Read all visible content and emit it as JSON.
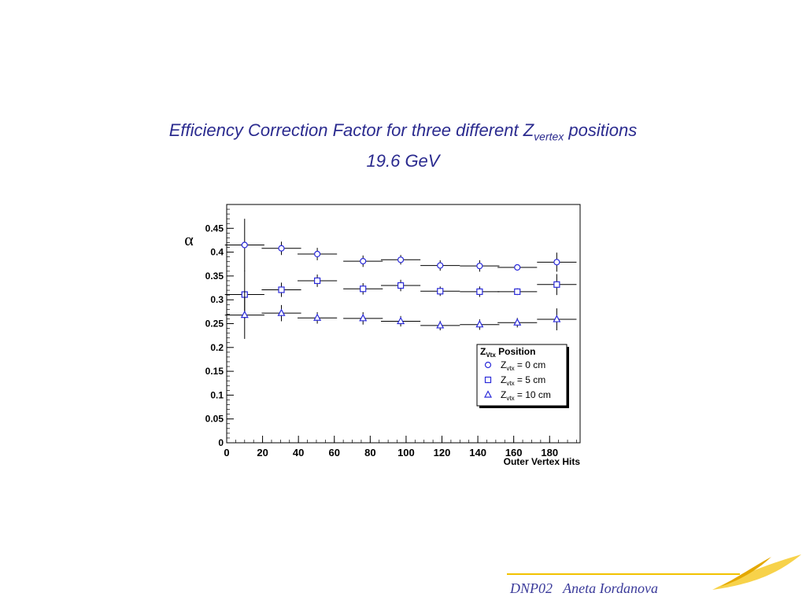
{
  "slide": {
    "title_main": "Efficiency Correction Factor for three different Z",
    "title_sub": "vertex",
    "title_end": " positions",
    "subtitle": "19.6 GeV",
    "footer": "DNP02   Aneta Iordanova"
  },
  "colors": {
    "title": "#2b2b8f",
    "series": "#2b2bd9",
    "accent": "#f2c200"
  },
  "chart_data": {
    "type": "scatter",
    "xlabel": "Outer Vertex Hits",
    "ylabel": "α",
    "xlim": [
      0,
      197
    ],
    "ylim": [
      0,
      0.5
    ],
    "xticks": [
      0,
      20,
      40,
      60,
      80,
      100,
      120,
      140,
      160,
      180
    ],
    "yticks": [
      0,
      0.05,
      0.1,
      0.15,
      0.2,
      0.25,
      0.3,
      0.35,
      0.4,
      0.45
    ],
    "legend": {
      "title_main": "Z",
      "title_sub": "Vtx",
      "title_end": " Position",
      "placement": "lower-right"
    },
    "series": [
      {
        "marker": "circle",
        "legend_main": "Z",
        "legend_sub": "vtx",
        "legend_end": " = 0 cm",
        "x": [
          10,
          30.5,
          50.5,
          76,
          97,
          119,
          141,
          162,
          184
        ],
        "xerr": [
          11,
          11,
          11,
          11,
          11,
          11,
          11,
          11,
          11
        ],
        "y": [
          0.415,
          0.408,
          0.396,
          0.381,
          0.384,
          0.372,
          0.371,
          0.368,
          0.379
        ],
        "yerr": [
          0.055,
          0.014,
          0.013,
          0.012,
          0.01,
          0.011,
          0.012,
          0.006,
          0.02
        ]
      },
      {
        "marker": "square",
        "legend_main": "Z",
        "legend_sub": "vtx",
        "legend_end": " = 5 cm",
        "x": [
          10,
          30.5,
          50.5,
          76,
          97,
          119,
          141,
          162,
          184
        ],
        "xerr": [
          11,
          11,
          11,
          11,
          11,
          11,
          11,
          11,
          11
        ],
        "y": [
          0.311,
          0.321,
          0.34,
          0.323,
          0.33,
          0.318,
          0.317,
          0.317,
          0.332
        ],
        "yerr": [
          0.05,
          0.015,
          0.013,
          0.012,
          0.012,
          0.01,
          0.011,
          0.007,
          0.022
        ]
      },
      {
        "marker": "triangle",
        "legend_main": "Z",
        "legend_sub": "vtx",
        "legend_end": " = 10 cm",
        "x": [
          10,
          30.5,
          50.5,
          76,
          97,
          119,
          141,
          162,
          184
        ],
        "xerr": [
          11,
          11,
          11,
          11,
          11,
          11,
          11,
          11,
          11
        ],
        "y": [
          0.268,
          0.272,
          0.262,
          0.261,
          0.255,
          0.246,
          0.248,
          0.252,
          0.259
        ],
        "yerr": [
          0.05,
          0.017,
          0.012,
          0.013,
          0.011,
          0.01,
          0.011,
          0.01,
          0.023
        ]
      }
    ]
  }
}
